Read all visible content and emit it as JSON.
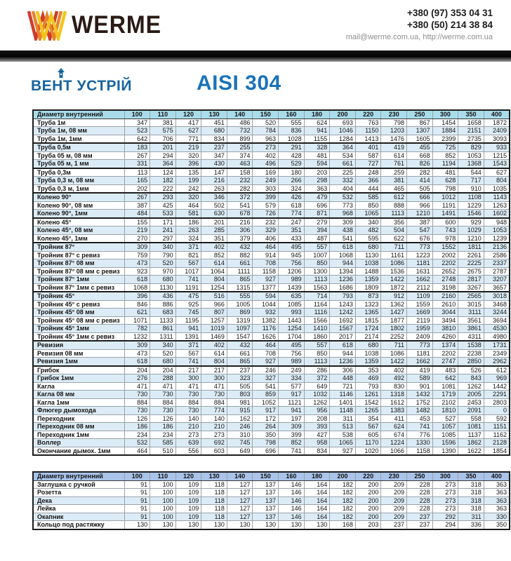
{
  "header": {
    "brand": "WERME",
    "phone1": "+380 (97) 353 04 31",
    "phone2": "+380 (50) 214 38 84",
    "contacts": "mail@werme.com.ua, http://werme.com.ua"
  },
  "subheader": {
    "brand2": "ВЕНТ УСТРІЙ",
    "title": "AISI 304"
  },
  "colors": {
    "header1-bg": "#a9dcea",
    "header2-bg": "#a9c3e9",
    "stripe": "#dcecf6",
    "accent-blue": "#1b72b8",
    "brand-blue": "#19649f",
    "logo-red": "#cf3b2a",
    "logo-orange": "#e8832c",
    "logo-yellow": "#f2c51c"
  },
  "tables": [
    {
      "id": "t1",
      "header_label": "Диаметр внутренний",
      "columns": [
        "100",
        "110",
        "120",
        "130",
        "140",
        "150",
        "160",
        "180",
        "200",
        "220",
        "230",
        "250",
        "300",
        "350",
        "400"
      ],
      "group_breaks": [
        3,
        6,
        9,
        12,
        15,
        21,
        27,
        30
      ],
      "rows": [
        {
          "label": "Труба 1м",
          "values": [
            347,
            381,
            417,
            451,
            486,
            520,
            555,
            624,
            693,
            763,
            798,
            867,
            1454,
            1658,
            1872
          ]
        },
        {
          "label": "Труба 1м, 08 мм",
          "values": [
            523,
            575,
            627,
            680,
            732,
            784,
            836,
            941,
            1046,
            1150,
            1203,
            1307,
            1884,
            2151,
            2409
          ]
        },
        {
          "label": "Труба 1м, 1мм",
          "values": [
            642,
            706,
            771,
            834,
            899,
            963,
            1028,
            1155,
            1284,
            1413,
            1476,
            1605,
            2399,
            2735,
            3093
          ]
        },
        {
          "label": "Труба 0,5м",
          "values": [
            183,
            201,
            219,
            237,
            255,
            273,
            291,
            328,
            364,
            401,
            419,
            455,
            725,
            829,
            933
          ]
        },
        {
          "label": "Труба 05 м, 08 мм",
          "values": [
            267,
            294,
            320,
            347,
            374,
            402,
            428,
            481,
            534,
            587,
            614,
            668,
            852,
            1053,
            1215
          ]
        },
        {
          "label": "Труба 05 м, 1 мм",
          "values": [
            331,
            364,
            396,
            430,
            463,
            496,
            529,
            594,
            661,
            727,
            761,
            826,
            1194,
            1368,
            1543
          ]
        },
        {
          "label": "Труба 0,3м",
          "values": [
            113,
            124,
            135,
            147,
            158,
            169,
            180,
            203,
            225,
            248,
            259,
            282,
            481,
            544,
            627
          ]
        },
        {
          "label": "Труба 0,3 м, 08 мм",
          "values": [
            165,
            182,
            199,
            216,
            232,
            249,
            266,
            298,
            332,
            366,
            381,
            414,
            628,
            717,
            804
          ]
        },
        {
          "label": "Труба 0,3 м, 1мм",
          "values": [
            202,
            222,
            242,
            263,
            282,
            303,
            324,
            363,
            404,
            444,
            465,
            505,
            798,
            910,
            1035
          ]
        },
        {
          "label": "Колено 90°",
          "values": [
            267,
            293,
            320,
            346,
            372,
            399,
            426,
            479,
            532,
            585,
            612,
            666,
            1012,
            1108,
            1143
          ]
        },
        {
          "label": "Колено 90°, 08 мм",
          "values": [
            387,
            425,
            464,
            502,
            541,
            579,
            618,
            696,
            773,
            850,
            888,
            966,
            1191,
            1229,
            1263
          ]
        },
        {
          "label": "Колено 90°, 1мм",
          "values": [
            484,
            533,
            581,
            630,
            678,
            726,
            774,
            871,
            968,
            1065,
            1113,
            1210,
            1491,
            1546,
            1602
          ]
        },
        {
          "label": "Колено 45°",
          "values": [
            155,
            171,
            186,
            201,
            216,
            232,
            247,
            279,
            309,
            340,
            356,
            387,
            600,
            929,
            948
          ]
        },
        {
          "label": "Колено 45°, 08 мм",
          "values": [
            219,
            241,
            263,
            285,
            306,
            329,
            351,
            394,
            438,
            482,
            504,
            547,
            743,
            1029,
            1053
          ]
        },
        {
          "label": "Колено 45°, 1мм",
          "values": [
            270,
            297,
            324,
            351,
            379,
            406,
            433,
            487,
            541,
            595,
            622,
            676,
            978,
            1210,
            1239
          ]
        },
        {
          "label": "Тройник 87°",
          "values": [
            309,
            340,
            371,
            402,
            432,
            464,
            495,
            557,
            618,
            680,
            711,
            773,
            1552,
            1811,
            2136
          ]
        },
        {
          "label": "Тройник 87° с ревиз",
          "values": [
            759,
            790,
            821,
            852,
            882,
            914,
            945,
            1007,
            1068,
            1130,
            1161,
            1223,
            2002,
            2261,
            2586
          ]
        },
        {
          "label": "Тройник 87° 08 мм",
          "values": [
            473,
            520,
            567,
            614,
            661,
            708,
            756,
            850,
            944,
            1038,
            1086,
            1181,
            2202,
            2225,
            2337
          ]
        },
        {
          "label": "Тройник 87° 08 мм с ревиз",
          "values": [
            923,
            970,
            1017,
            1064,
            1111,
            1158,
            1206,
            1300,
            1394,
            1488,
            1536,
            1631,
            2652,
            2675,
            2787
          ]
        },
        {
          "label": "Тройник 87° 1мм",
          "values": [
            618,
            680,
            741,
            804,
            865,
            927,
            989,
            1113,
            1236,
            1359,
            1422,
            1662,
            2748,
            2817,
            3207
          ]
        },
        {
          "label": "Тройник 87° 1мм с ревиз",
          "values": [
            1068,
            1130,
            1191,
            1254,
            1315,
            1377,
            1439,
            1563,
            1686,
            1809,
            1872,
            2112,
            3198,
            3267,
            3657
          ]
        },
        {
          "label": "Тройник 45°",
          "values": [
            396,
            436,
            475,
            516,
            555,
            594,
            635,
            714,
            793,
            873,
            912,
            1109,
            2160,
            2565,
            3018
          ]
        },
        {
          "label": "Тройник 45° с ревиз",
          "values": [
            846,
            886,
            925,
            966,
            1005,
            1044,
            1085,
            1164,
            1243,
            1323,
            1362,
            1559,
            2610,
            3015,
            3468
          ]
        },
        {
          "label": "Тройник 45° 08 мм",
          "values": [
            621,
            683,
            745,
            807,
            869,
            932,
            993,
            1116,
            1242,
            1365,
            1427,
            1669,
            3044,
            3111,
            3244
          ]
        },
        {
          "label": "Тройник 45° 08 мм с ревиз",
          "values": [
            1071,
            1133,
            1195,
            1257,
            1319,
            1382,
            1443,
            1566,
            1692,
            1815,
            1877,
            2119,
            3494,
            3561,
            3694
          ]
        },
        {
          "label": "Тройник 45° 1мм",
          "values": [
            782,
            861,
            941,
            1019,
            1097,
            1176,
            1254,
            1410,
            1567,
            1724,
            1802,
            1959,
            3810,
            3861,
            4530
          ]
        },
        {
          "label": "Тройник 45° 1мм с ревиз",
          "values": [
            1232,
            1311,
            1391,
            1469,
            1547,
            1626,
            1704,
            1860,
            2017,
            2174,
            2252,
            2409,
            4260,
            4311,
            4980
          ]
        },
        {
          "label": "Ревизия",
          "values": [
            309,
            340,
            371,
            402,
            432,
            464,
            495,
            557,
            618,
            680,
            711,
            773,
            1374,
            1538,
            1731
          ]
        },
        {
          "label": "Ревизия 08 мм",
          "values": [
            473,
            520,
            567,
            614,
            661,
            708,
            756,
            850,
            944,
            1038,
            1086,
            1181,
            2202,
            2238,
            2349
          ]
        },
        {
          "label": "Ревизия 1мм",
          "values": [
            618,
            680,
            741,
            804,
            865,
            927,
            989,
            1113,
            1236,
            1359,
            1422,
            1662,
            2747,
            2850,
            2962
          ]
        },
        {
          "label": "Грибок",
          "values": [
            204,
            204,
            217,
            217,
            237,
            246,
            249,
            286,
            306,
            353,
            402,
            419,
            483,
            526,
            612
          ]
        },
        {
          "label": "Грибок 1мм",
          "values": [
            276,
            288,
            300,
            300,
            323,
            327,
            334,
            372,
            448,
            469,
            492,
            589,
            642,
            843,
            969
          ]
        },
        {
          "label": "Кагла",
          "values": [
            471,
            471,
            471,
            471,
            505,
            541,
            577,
            649,
            721,
            793,
            830,
            901,
            1081,
            1262,
            1442
          ]
        },
        {
          "label": "Кагла 08 мм",
          "values": [
            730,
            730,
            730,
            730,
            803,
            859,
            917,
            1032,
            1146,
            1261,
            1318,
            1432,
            1719,
            2005,
            2291
          ]
        },
        {
          "label": "Кагла 1мм",
          "values": [
            884,
            884,
            884,
            884,
            981,
            1052,
            1121,
            1262,
            1401,
            1542,
            1612,
            1752,
            2102,
            2453,
            2803
          ]
        },
        {
          "label": "Флюгер дымохода",
          "values": [
            730,
            730,
            730,
            774,
            915,
            917,
            941,
            956,
            1148,
            1265,
            1383,
            1482,
            1810,
            2091,
            0
          ]
        },
        {
          "label": "Переходник",
          "values": [
            126,
            126,
            140,
            140,
            162,
            172,
            197,
            208,
            311,
            354,
            411,
            453,
            527,
            558,
            592
          ]
        },
        {
          "label": "Переходник 08 мм",
          "values": [
            186,
            186,
            210,
            210,
            246,
            264,
            309,
            393,
            513,
            567,
            624,
            741,
            1057,
            1081,
            1151
          ]
        },
        {
          "label": "Переходник 1мм",
          "values": [
            234,
            234,
            273,
            273,
            310,
            350,
            399,
            427,
            538,
            605,
            674,
            776,
            1085,
            1137,
            1162
          ]
        },
        {
          "label": "Воллер",
          "values": [
            532,
            585,
            639,
            692,
            745,
            798,
            852,
            958,
            1065,
            1170,
            1224,
            1330,
            1596,
            1862,
            2128
          ]
        },
        {
          "label": "Окончание дымох. 1мм",
          "values": [
            464,
            510,
            556,
            603,
            649,
            696,
            741,
            834,
            927,
            1020,
            1066,
            1158,
            1390,
            1622,
            1854
          ]
        }
      ]
    },
    {
      "id": "t2",
      "header_label": "Диаметр внутренний",
      "columns": [
        "100",
        "110",
        "120",
        "130",
        "140",
        "150",
        "160",
        "180",
        "200",
        "220",
        "230",
        "250",
        "300",
        "350",
        "400"
      ],
      "group_breaks": [],
      "rows": [
        {
          "label": "Заглушка с ручкой",
          "values": [
            91,
            100,
            109,
            118,
            127,
            137,
            146,
            164,
            182,
            200,
            209,
            228,
            273,
            318,
            363
          ]
        },
        {
          "label": "Розетта",
          "values": [
            91,
            100,
            109,
            118,
            127,
            137,
            146,
            164,
            182,
            200,
            209,
            228,
            273,
            318,
            363
          ]
        },
        {
          "label": "Дека",
          "values": [
            91,
            100,
            109,
            118,
            127,
            137,
            146,
            164,
            182,
            200,
            209,
            228,
            273,
            318,
            363
          ]
        },
        {
          "label": "Лейка",
          "values": [
            91,
            100,
            109,
            118,
            127,
            137,
            146,
            164,
            182,
            200,
            209,
            228,
            273,
            318,
            363
          ]
        },
        {
          "label": "Окапник",
          "values": [
            91,
            100,
            109,
            118,
            127,
            137,
            146,
            164,
            182,
            200,
            209,
            237,
            292,
            311,
            330
          ]
        },
        {
          "label": "Кольцо под растяжку",
          "values": [
            130,
            130,
            130,
            130,
            130,
            130,
            130,
            130,
            168,
            203,
            237,
            237,
            294,
            336,
            350
          ]
        }
      ]
    }
  ]
}
